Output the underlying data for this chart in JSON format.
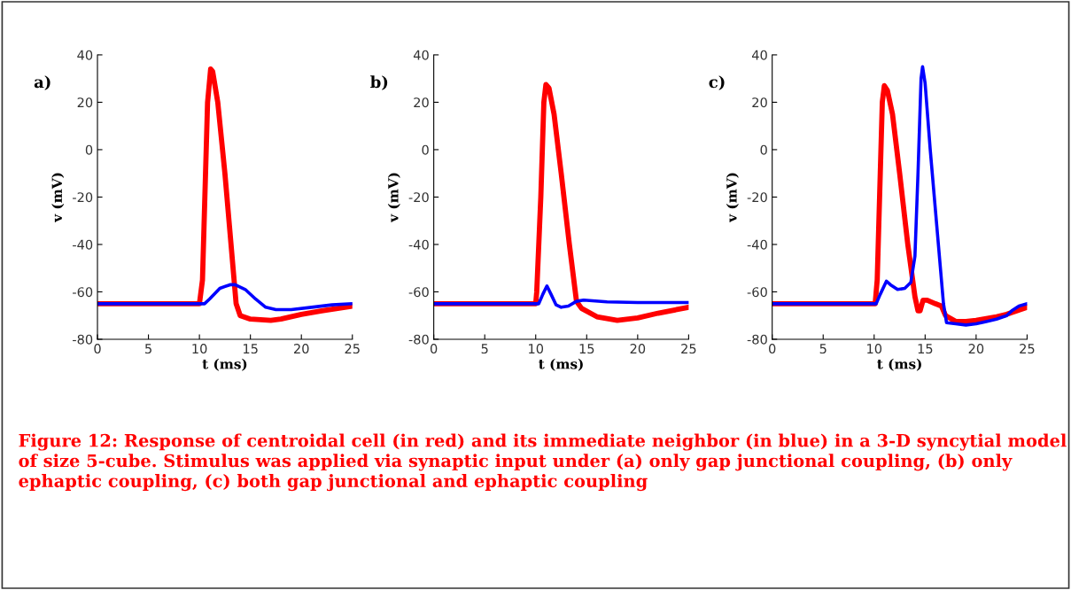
{
  "chart_data": [
    {
      "type": "line",
      "xlabel": "t (ms)",
      "ylabel": "v (mV)",
      "xlim": [
        0,
        25
      ],
      "ylim": [
        -80,
        40
      ],
      "xticks": [
        0,
        5,
        10,
        15,
        20,
        25
      ],
      "yticks": [
        -80,
        -60,
        -40,
        -20,
        0,
        20,
        40
      ],
      "grid": false,
      "legend": false,
      "annotations": [
        "a)"
      ],
      "series": [
        {
          "color": "#ff0000",
          "x": [
            0,
            10,
            10.3,
            10.8,
            11.1,
            11.3,
            11.8,
            12.5,
            13.2,
            13.6,
            14,
            15,
            17,
            18,
            20,
            22,
            25
          ],
          "values": [
            -65,
            -65,
            -55,
            20,
            34,
            33,
            20,
            -10,
            -45,
            -65,
            -70,
            -71.5,
            -72,
            -71.5,
            -69.5,
            -68,
            -66
          ]
        },
        {
          "color": "#0000ff",
          "x": [
            0,
            10.5,
            11,
            12,
            13,
            13.5,
            14.5,
            15.5,
            16.5,
            17.5,
            19,
            21,
            23,
            25
          ],
          "values": [
            -65,
            -65,
            -63,
            -58.5,
            -57,
            -57,
            -59,
            -63,
            -66.5,
            -67.5,
            -67.5,
            -66.5,
            -65.5,
            -65
          ]
        }
      ]
    },
    {
      "type": "line",
      "xlabel": "t (ms)",
      "ylabel": "v (mV)",
      "xlim": [
        0,
        25
      ],
      "ylim": [
        -80,
        40
      ],
      "xticks": [
        0,
        5,
        10,
        15,
        20,
        25
      ],
      "yticks": [
        -80,
        -60,
        -40,
        -20,
        0,
        20,
        40
      ],
      "grid": false,
      "legend": false,
      "annotations": [
        "b)"
      ],
      "series": [
        {
          "color": "#ff0000",
          "x": [
            0,
            10,
            10.1,
            10.5,
            10.8,
            11,
            11.3,
            11.8,
            12.5,
            13.3,
            14,
            14.5,
            16,
            18,
            20,
            22,
            25
          ],
          "values": [
            -65,
            -65,
            -60,
            -20,
            20,
            27.5,
            26,
            15,
            -10,
            -40,
            -64,
            -67,
            -70.5,
            -72,
            -71,
            -69,
            -66.5
          ]
        },
        {
          "color": "#0000ff",
          "x": [
            0,
            10.3,
            10.7,
            11.1,
            11.5,
            12,
            12.5,
            13.2,
            14,
            14.7,
            17,
            20,
            25
          ],
          "values": [
            -65,
            -65,
            -61,
            -57.5,
            -61,
            -65.5,
            -66.5,
            -66,
            -64,
            -63.5,
            -64.2,
            -64.5,
            -64.5
          ]
        }
      ]
    },
    {
      "type": "line",
      "xlabel": "t (ms)",
      "ylabel": "v (mV)",
      "xlim": [
        0,
        25
      ],
      "ylim": [
        -80,
        40
      ],
      "xticks": [
        0,
        5,
        10,
        15,
        20,
        25
      ],
      "yticks": [
        -80,
        -60,
        -40,
        -20,
        0,
        20,
        40
      ],
      "grid": false,
      "legend": false,
      "annotations": [
        "c)",
        "Figure 12: Response of centroidal cell (in red) and its immediate neighbor (in blue) in a 3-D syncytial model of size 5-cube. Stimulus was applied via synaptic input under (a) only gap junctional coupling, (b) only ephaptic coupling, (c) both gap junctional and ephaptic coupling"
      ],
      "series": [
        {
          "color": "#ff0000",
          "x": [
            0,
            10.1,
            10.3,
            10.6,
            10.8,
            11,
            11.3,
            11.8,
            12.5,
            13.3,
            14,
            14.3,
            14.5,
            14.8,
            15.2,
            16,
            16.6,
            17,
            18,
            19,
            20,
            22,
            23,
            25
          ],
          "values": [
            -65,
            -65,
            -55,
            -10,
            20,
            27,
            25,
            15,
            -10,
            -40,
            -62,
            -68,
            -68,
            -63.5,
            -63.5,
            -65,
            -66,
            -70,
            -72.5,
            -72.5,
            -72,
            -70.5,
            -69.5,
            -66.5
          ]
        },
        {
          "color": "#0000ff",
          "x": [
            0,
            10.2,
            10.6,
            11.2,
            11.6,
            12.3,
            13,
            13.6,
            14,
            14.3,
            14.6,
            14.75,
            15,
            15.5,
            16.2,
            16.8,
            17.1,
            18,
            19,
            20,
            21,
            22,
            23,
            23.5,
            24.2,
            25
          ],
          "values": [
            -65,
            -65,
            -61,
            -55.5,
            -57,
            -59,
            -58.5,
            -56,
            -45,
            -10,
            30,
            35,
            28,
            0,
            -35,
            -65,
            -73,
            -73.5,
            -74,
            -73.5,
            -72.5,
            -71.5,
            -70,
            -68,
            -66,
            -65
          ]
        }
      ]
    }
  ]
}
